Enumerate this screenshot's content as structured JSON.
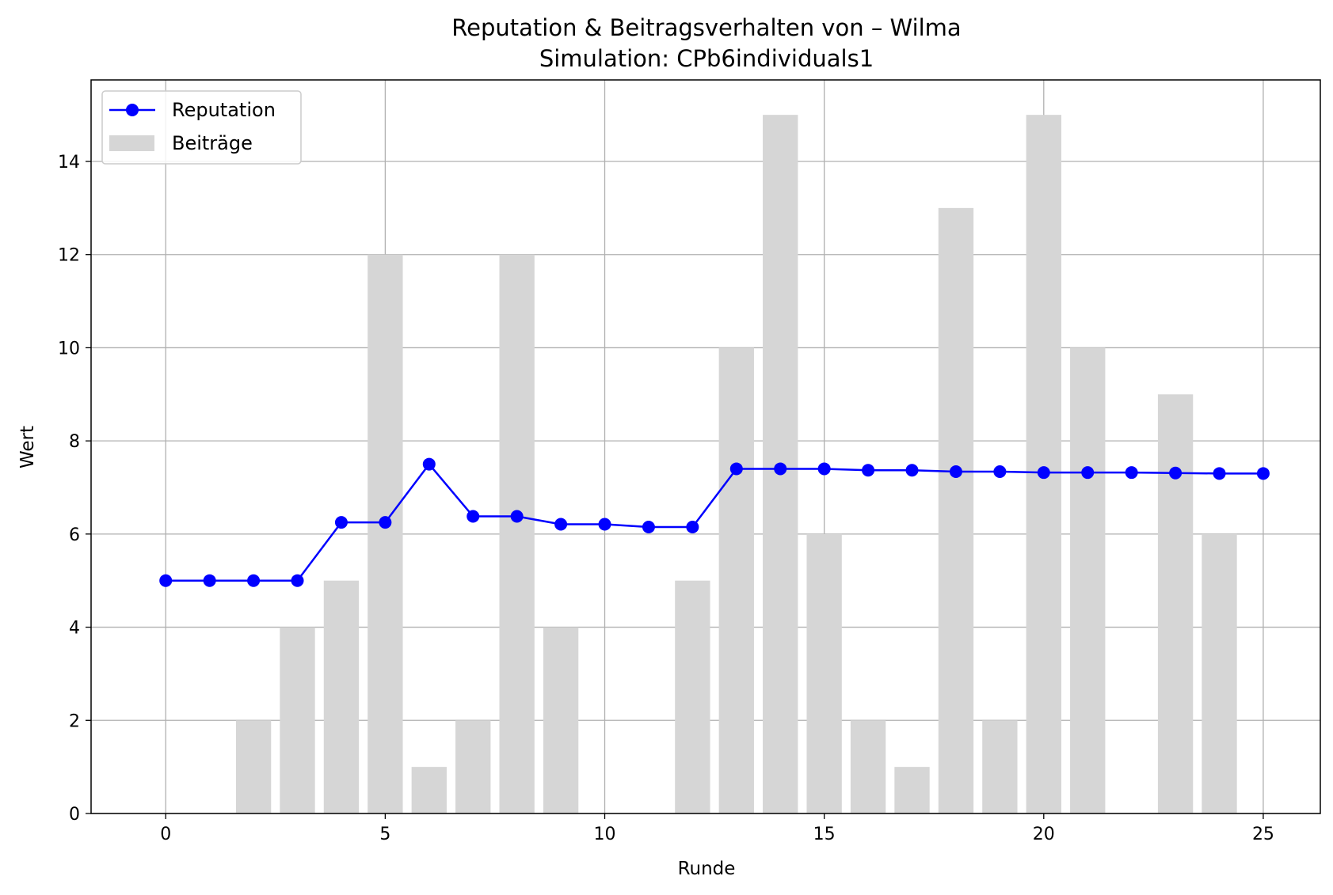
{
  "chart_data": {
    "type": "bar",
    "title": "Reputation & Beitragsverhalten von – Wilma",
    "subtitle": "Simulation: CPb6individuals1",
    "xlabel": "Runde",
    "ylabel": "Wert",
    "xlim": [
      -1.7,
      26.3
    ],
    "ylim": [
      0,
      15.75
    ],
    "x_ticks": [
      0,
      5,
      10,
      15,
      20,
      25
    ],
    "y_ticks": [
      0,
      2,
      4,
      6,
      8,
      10,
      12,
      14
    ],
    "grid": true,
    "legend_position": "top-left",
    "x": [
      0,
      1,
      2,
      3,
      4,
      5,
      6,
      7,
      8,
      9,
      10,
      11,
      12,
      13,
      14,
      15,
      16,
      17,
      18,
      19,
      20,
      21,
      22,
      23,
      24,
      25
    ],
    "series": [
      {
        "name": "Reputation",
        "kind": "line",
        "color": "#0000ff",
        "marker": "circle",
        "values": [
          5.0,
          5.0,
          5.0,
          5.0,
          6.25,
          6.25,
          7.5,
          6.38,
          6.38,
          6.21,
          6.21,
          6.15,
          6.15,
          7.4,
          7.4,
          7.4,
          7.37,
          7.37,
          7.34,
          7.34,
          7.32,
          7.32,
          7.32,
          7.31,
          7.3,
          7.3
        ]
      },
      {
        "name": "Beiträge",
        "kind": "bar",
        "color": "#d6d6d6",
        "values": [
          0,
          0,
          2,
          4,
          5,
          12,
          1,
          2,
          12,
          4,
          0,
          0,
          5,
          10,
          15,
          6,
          2,
          1,
          13,
          2,
          15,
          10,
          0,
          9,
          6,
          0
        ]
      }
    ]
  },
  "colors": {
    "grid": "#b0b0b0",
    "axes": "#000000",
    "legend_border": "#cccccc"
  }
}
